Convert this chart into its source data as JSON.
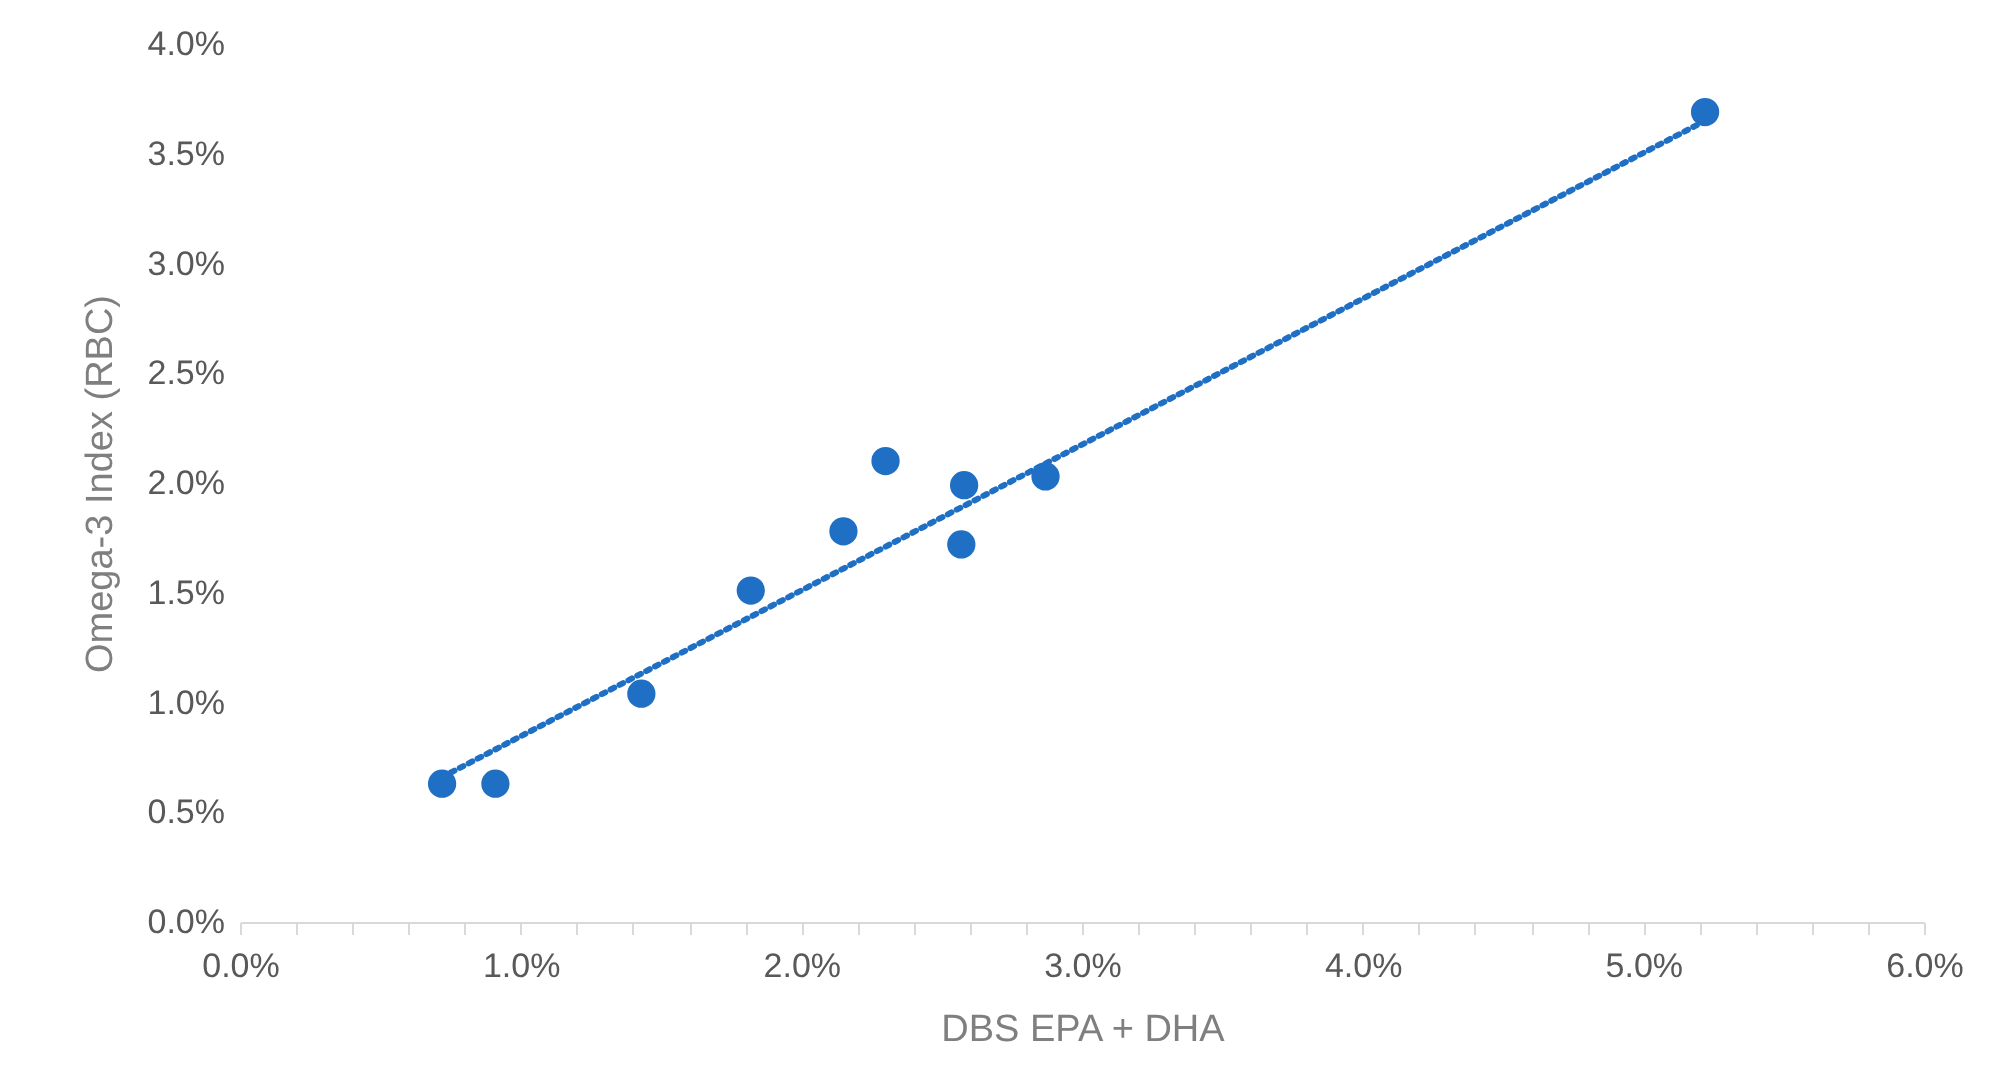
{
  "chart_data": {
    "type": "scatter",
    "xlabel": "DBS EPA + DHA",
    "ylabel": "Omega-3 Index (RBC)",
    "x": [
      0.72,
      0.91,
      1.43,
      1.82,
      2.15,
      2.3,
      2.57,
      2.58,
      2.87,
      5.22
    ],
    "series": [
      {
        "color": "#1f6fc5",
        "values": [
          0.63,
          0.63,
          1.04,
          1.51,
          1.78,
          2.1,
          1.72,
          1.99,
          2.03,
          3.69
        ]
      },
      {
        "type": "line",
        "color": "#1f6fc5",
        "x": [
          0.72,
          5.22
        ],
        "values": [
          0.66,
          3.65
        ],
        "line_style": "dotted",
        "marker": "none"
      }
    ],
    "marker": "circle",
    "grid": false,
    "xlim": [
      0,
      6
    ],
    "ylim": [
      0,
      4
    ],
    "xticks": [
      {
        "value": 0,
        "label": "0.0%"
      },
      {
        "value": 0.2,
        "label": null
      },
      {
        "value": 0.4,
        "label": null
      },
      {
        "value": 0.6,
        "label": null
      },
      {
        "value": 0.8,
        "label": null
      },
      {
        "value": 1,
        "label": "1.0%"
      },
      {
        "value": 1.2,
        "label": null
      },
      {
        "value": 1.4,
        "label": null
      },
      {
        "value": 1.6,
        "label": null
      },
      {
        "value": 1.8,
        "label": null
      },
      {
        "value": 2,
        "label": "2.0%"
      },
      {
        "value": 2.2,
        "label": null
      },
      {
        "value": 2.4,
        "label": null
      },
      {
        "value": 2.6,
        "label": null
      },
      {
        "value": 2.8,
        "label": null
      },
      {
        "value": 3,
        "label": "3.0%"
      },
      {
        "value": 3.2,
        "label": null
      },
      {
        "value": 3.4,
        "label": null
      },
      {
        "value": 3.6,
        "label": null
      },
      {
        "value": 3.8,
        "label": null
      },
      {
        "value": 4,
        "label": "4.0%"
      },
      {
        "value": 4.2,
        "label": null
      },
      {
        "value": 4.4,
        "label": null
      },
      {
        "value": 4.6,
        "label": null
      },
      {
        "value": 4.8,
        "label": null
      },
      {
        "value": 5,
        "label": "5.0%"
      },
      {
        "value": 5.2,
        "label": null
      },
      {
        "value": 5.4,
        "label": null
      },
      {
        "value": 5.6,
        "label": null
      },
      {
        "value": 5.8,
        "label": null
      },
      {
        "value": 6,
        "label": "6.0%"
      }
    ],
    "yticks": [
      {
        "value": 0,
        "label": "0.0%"
      },
      {
        "value": 0.5,
        "label": "0.5%"
      },
      {
        "value": 1,
        "label": "1.0%"
      },
      {
        "value": 1.5,
        "label": "1.5%"
      },
      {
        "value": 2,
        "label": "2.0%"
      },
      {
        "value": 2.5,
        "label": "2.5%"
      },
      {
        "value": 3,
        "label": "3.0%"
      },
      {
        "value": 3.5,
        "label": "3.5%"
      },
      {
        "value": 4,
        "label": "4.0%"
      }
    ]
  }
}
